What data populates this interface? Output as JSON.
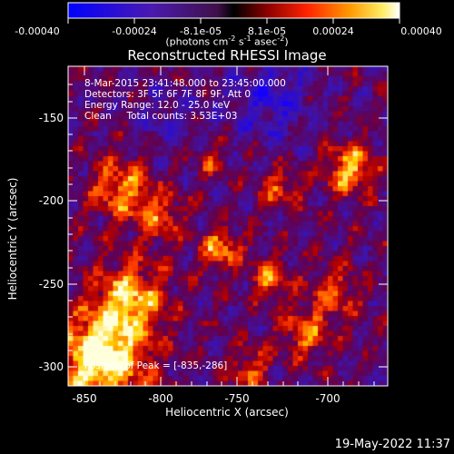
{
  "colorbar": {
    "ticks": [
      "-0.00040",
      "-0.00024",
      "-8.1e-05",
      "8.1e-05",
      "0.00024",
      "0.00040"
    ],
    "units_prefix": "(photons cm",
    "units_sup1": "-2",
    "units_mid1": " s",
    "units_sup2": "-1",
    "units_mid2": " asec",
    "units_sup3": "-2",
    "units_suffix": ")"
  },
  "title": "Reconstructed RHESSI Image",
  "info": {
    "line1": "8-Mar-2015 23:41:48.000 to 23:45:00.000",
    "line2": "Detectors: 3F 5F 6F 7F 8F 9F, Att 0",
    "line3": "Energy Range: 12.0 - 25.0 keV",
    "line4": "Clean     Total counts: 3.53E+03"
  },
  "peak": "Position of Peak = [-835,-286]",
  "axes": {
    "xlabel": "Heliocentric X (arcsec)",
    "ylabel": "Heliocentric Y (arcsec)",
    "xticks": [
      "-850",
      "-800",
      "-750",
      "-700"
    ],
    "yticks": [
      "-150",
      "-200",
      "-250",
      "-300"
    ]
  },
  "timestamp": "19-May-2022 11:37",
  "colors": {
    "background": "#000000",
    "axis": "#ffffff",
    "scale": [
      "#0000ff",
      "#3a1a9a",
      "#5a2a8a",
      "#000000",
      "#aa0000",
      "#ff4400",
      "#ffbb00",
      "#ffffff"
    ]
  }
}
